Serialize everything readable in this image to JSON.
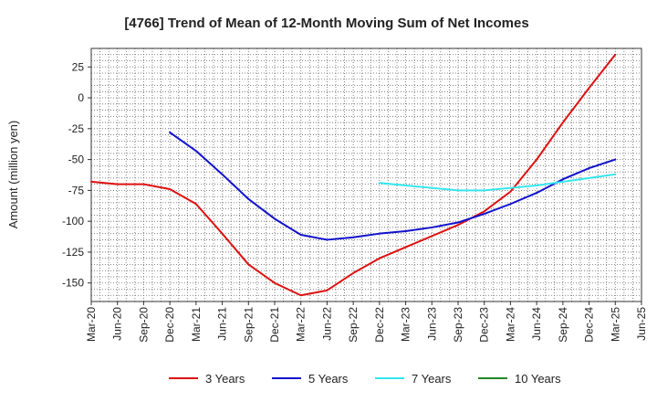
{
  "chart_data": {
    "type": "line",
    "title": "[4766]  Trend of Mean of 12-Month Moving Sum of Net Incomes",
    "ylabel": "Amount (million yen)",
    "xlabel": "",
    "ylim": [
      -165,
      40
    ],
    "yticks": [
      25,
      0,
      -25,
      -50,
      -75,
      -100,
      -125,
      -150
    ],
    "xlim": [
      "2020-03",
      "2025-06"
    ],
    "xticks": [
      "Mar-20",
      "Jun-20",
      "Sep-20",
      "Dec-20",
      "Mar-21",
      "Jun-21",
      "Sep-21",
      "Dec-21",
      "Mar-22",
      "Jun-22",
      "Sep-22",
      "Dec-22",
      "Mar-23",
      "Jun-23",
      "Sep-23",
      "Dec-23",
      "Mar-24",
      "Jun-24",
      "Sep-24",
      "Dec-24",
      "Mar-25",
      "Jun-25"
    ],
    "grid": true,
    "legend_position": "bottom",
    "series": [
      {
        "name": "3 Years",
        "color": "#dd1111",
        "points": [
          [
            "2020-03",
            -68
          ],
          [
            "2020-06",
            -70
          ],
          [
            "2020-09",
            -70
          ],
          [
            "2020-12",
            -74
          ],
          [
            "2021-03",
            -86
          ],
          [
            "2021-06",
            -110
          ],
          [
            "2021-09",
            -135
          ],
          [
            "2021-12",
            -150
          ],
          [
            "2022-03",
            -160
          ],
          [
            "2022-06",
            -156
          ],
          [
            "2022-09",
            -142
          ],
          [
            "2022-12",
            -130
          ],
          [
            "2023-03",
            -121
          ],
          [
            "2023-06",
            -112
          ],
          [
            "2023-09",
            -103
          ],
          [
            "2023-12",
            -92
          ],
          [
            "2024-03",
            -76
          ],
          [
            "2024-06",
            -50
          ],
          [
            "2024-09",
            -20
          ],
          [
            "2024-12",
            8
          ],
          [
            "2025-03",
            35
          ]
        ]
      },
      {
        "name": "5 Years",
        "color": "#1111cc",
        "points": [
          [
            "2020-12",
            -28
          ],
          [
            "2021-03",
            -43
          ],
          [
            "2021-06",
            -62
          ],
          [
            "2021-09",
            -82
          ],
          [
            "2021-12",
            -98
          ],
          [
            "2022-03",
            -111
          ],
          [
            "2022-06",
            -115
          ],
          [
            "2022-09",
            -113
          ],
          [
            "2022-12",
            -110
          ],
          [
            "2023-03",
            -108
          ],
          [
            "2023-06",
            -105
          ],
          [
            "2023-09",
            -101
          ],
          [
            "2023-12",
            -94
          ],
          [
            "2024-03",
            -86
          ],
          [
            "2024-06",
            -77
          ],
          [
            "2024-09",
            -66
          ],
          [
            "2024-12",
            -57
          ],
          [
            "2025-03",
            -50
          ]
        ]
      },
      {
        "name": "7 Years",
        "color": "#33e6ee",
        "points": [
          [
            "2022-12",
            -69
          ],
          [
            "2023-03",
            -71
          ],
          [
            "2023-06",
            -73
          ],
          [
            "2023-09",
            -75
          ],
          [
            "2023-12",
            -75
          ],
          [
            "2024-03",
            -73
          ],
          [
            "2024-06",
            -71
          ],
          [
            "2024-09",
            -68
          ],
          [
            "2024-12",
            -65
          ],
          [
            "2025-03",
            -62
          ]
        ]
      },
      {
        "name": "10 Years",
        "color": "#228822",
        "points": []
      }
    ]
  }
}
